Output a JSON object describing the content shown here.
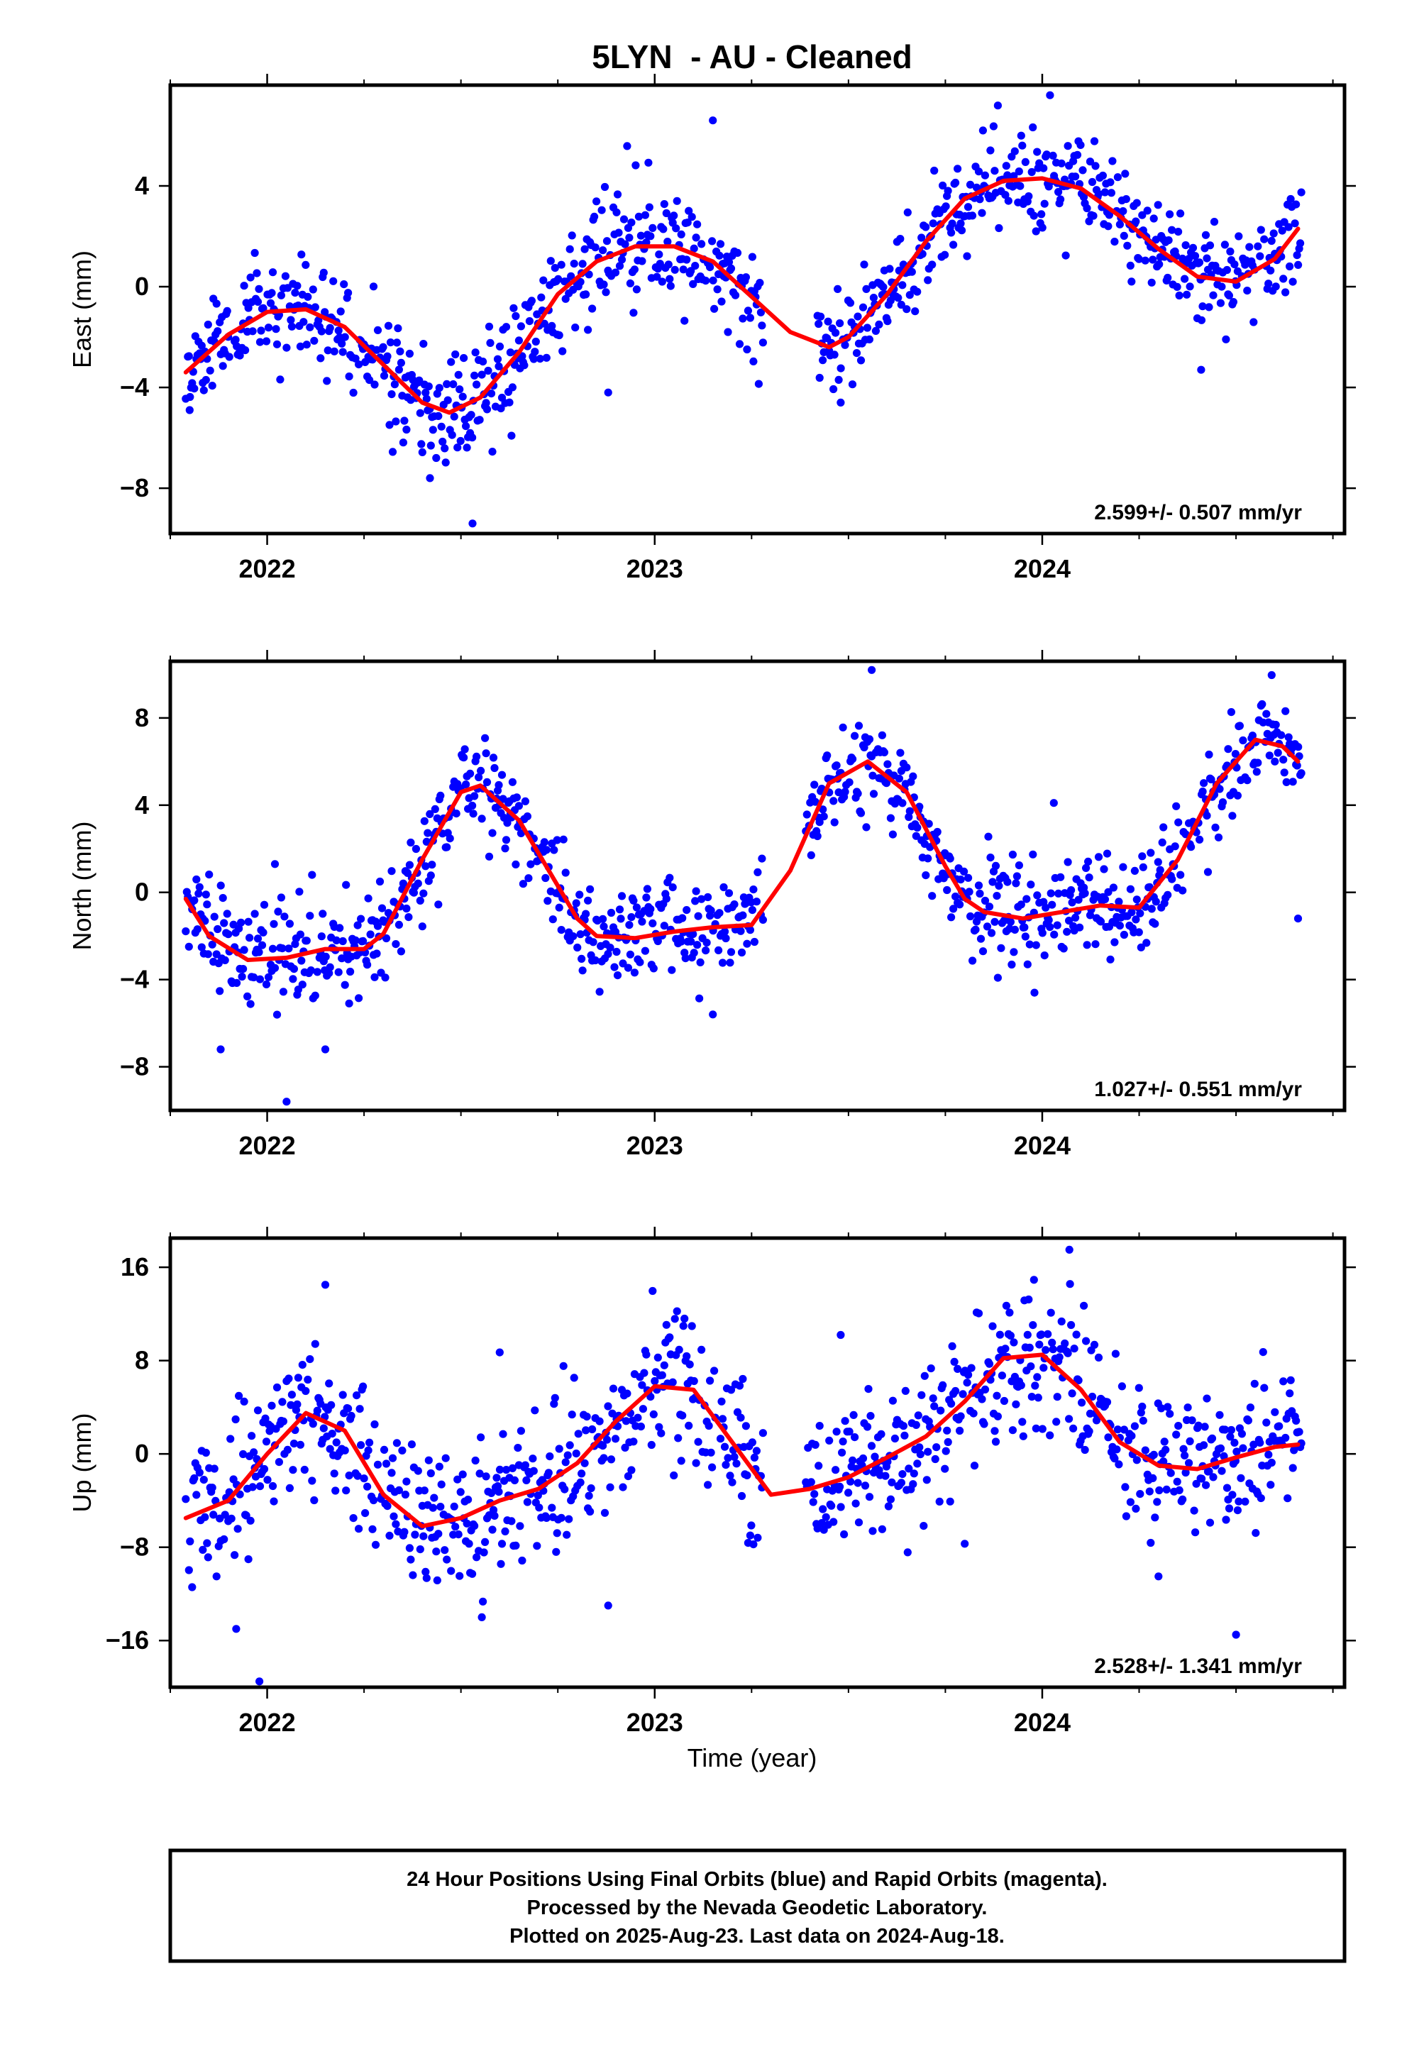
{
  "title": "5LYN  - AU - Cleaned",
  "xlabel": "Time (year)",
  "footer": {
    "lines": [
      "24 Hour Positions Using Final Orbits (blue) and Rapid Orbits (magenta).",
      "Processed by the Nevada Geodetic Laboratory.",
      "Plotted on 2025-Aug-23. Last data on 2024-Aug-18."
    ]
  },
  "colors": {
    "points": "#0000ff",
    "model": "#ff0000",
    "frame": "#000000"
  },
  "chart_data": [
    {
      "type": "scatter",
      "name": "east",
      "ylabel": "East (mm)",
      "rate_label": "2.599+/- 0.507 mm/yr",
      "xlim": [
        2021.75,
        2024.78
      ],
      "ylim": [
        -9.8,
        8.0
      ],
      "yticks": [
        -8,
        -4,
        0,
        4
      ],
      "xticks": [
        2022,
        2023,
        2024
      ],
      "xminor": [
        2021.75,
        2022.25,
        2022.5,
        2022.75,
        2023.25,
        2023.5,
        2023.75,
        2024.25,
        2024.5,
        2024.75
      ],
      "seed": 11,
      "model": {
        "x": [
          2021.79,
          2021.9,
          2022.0,
          2022.1,
          2022.2,
          2022.3,
          2022.4,
          2022.47,
          2022.55,
          2022.65,
          2022.75,
          2022.85,
          2022.95,
          2023.05,
          2023.15,
          2023.25,
          2023.35,
          2023.45,
          2023.5,
          2023.6,
          2023.7,
          2023.8,
          2023.9,
          2024.0,
          2024.1,
          2024.2,
          2024.3,
          2024.4,
          2024.5,
          2024.6,
          2024.66
        ],
        "y": [
          -3.4,
          -1.9,
          -1.0,
          -0.9,
          -1.6,
          -3.1,
          -4.6,
          -5.0,
          -4.4,
          -2.6,
          -0.3,
          1.0,
          1.6,
          1.6,
          1.0,
          -0.4,
          -1.8,
          -2.4,
          -2.0,
          -0.3,
          1.8,
          3.5,
          4.2,
          4.3,
          3.9,
          2.8,
          1.5,
          0.4,
          0.2,
          1.1,
          2.3
        ]
      },
      "segments": [
        {
          "start": 2021.79,
          "end": 2023.28,
          "noise": 1.1,
          "outliers": [
            [
              2022.53,
              -9.4
            ],
            [
              2022.42,
              -7.6
            ],
            [
              2021.8,
              -4.9
            ],
            [
              2022.88,
              -4.2
            ]
          ]
        },
        {
          "start": 2023.42,
          "end": 2024.67,
          "noise": 1.0,
          "outliers": [
            [
              2024.02,
              7.6
            ],
            [
              2023.15,
              6.6
            ],
            [
              2024.41,
              -3.3
            ],
            [
              2023.48,
              -4.6
            ]
          ]
        }
      ]
    },
    {
      "type": "scatter",
      "name": "north",
      "ylabel": "North (mm)",
      "rate_label": "1.027+/- 0.551 mm/yr",
      "xlim": [
        2021.75,
        2024.78
      ],
      "ylim": [
        -10.0,
        10.6
      ],
      "yticks": [
        -8,
        -4,
        0,
        4,
        8
      ],
      "xticks": [
        2022,
        2023,
        2024
      ],
      "xminor": [
        2021.75,
        2022.25,
        2022.5,
        2022.75,
        2023.25,
        2023.5,
        2023.75,
        2024.25,
        2024.5,
        2024.75
      ],
      "seed": 23,
      "model": {
        "x": [
          2021.79,
          2021.85,
          2021.95,
          2022.05,
          2022.15,
          2022.25,
          2022.3,
          2022.4,
          2022.5,
          2022.55,
          2022.65,
          2022.75,
          2022.8,
          2022.85,
          2022.95,
          2023.05,
          2023.15,
          2023.25,
          2023.35,
          2023.45,
          2023.55,
          2023.65,
          2023.75,
          2023.8,
          2023.85,
          2023.95,
          2024.05,
          2024.15,
          2024.25,
          2024.35,
          2024.45,
          2024.55,
          2024.62,
          2024.66
        ],
        "y": [
          -0.3,
          -2.0,
          -3.1,
          -3.0,
          -2.6,
          -2.6,
          -1.9,
          1.5,
          4.6,
          4.9,
          3.3,
          0.3,
          -1.2,
          -2.0,
          -2.1,
          -1.8,
          -1.6,
          -1.5,
          1.0,
          5.0,
          6.0,
          4.6,
          1.2,
          -0.3,
          -0.9,
          -1.2,
          -0.9,
          -0.6,
          -0.7,
          1.5,
          5.0,
          7.0,
          6.7,
          6.0
        ]
      },
      "segments": [
        {
          "start": 2021.79,
          "end": 2023.28,
          "noise": 1.15,
          "outliers": [
            [
              2022.05,
              -9.6
            ],
            [
              2021.88,
              -7.2
            ],
            [
              2022.15,
              -7.2
            ],
            [
              2022.02,
              1.3
            ],
            [
              2023.15,
              -5.6
            ]
          ]
        },
        {
          "start": 2023.39,
          "end": 2024.67,
          "noise": 1.1,
          "outliers": [
            [
              2023.56,
              10.2
            ],
            [
              2024.03,
              4.1
            ],
            [
              2023.98,
              -4.6
            ],
            [
              2024.66,
              -1.2
            ]
          ]
        }
      ]
    },
    {
      "type": "scatter",
      "name": "up",
      "ylabel": "Up (mm)",
      "rate_label": "2.528+/- 1.341 mm/yr",
      "xlim": [
        2021.75,
        2024.78
      ],
      "ylim": [
        -20.0,
        18.5
      ],
      "yticks": [
        -16,
        -8,
        0,
        8,
        16
      ],
      "xticks": [
        2022,
        2023,
        2024
      ],
      "xminor": [
        2021.75,
        2022.25,
        2022.5,
        2022.75,
        2023.25,
        2023.5,
        2023.75,
        2024.25,
        2024.5,
        2024.75
      ],
      "seed": 37,
      "model": {
        "x": [
          2021.79,
          2021.9,
          2022.0,
          2022.1,
          2022.2,
          2022.3,
          2022.4,
          2022.5,
          2022.6,
          2022.7,
          2022.8,
          2022.9,
          2023.0,
          2023.1,
          2023.2,
          2023.3,
          2023.4,
          2023.5,
          2023.6,
          2023.7,
          2023.8,
          2023.9,
          2024.0,
          2024.1,
          2024.2,
          2024.3,
          2024.4,
          2024.5,
          2024.6,
          2024.66
        ],
        "y": [
          -5.5,
          -4.0,
          0.0,
          3.5,
          2.0,
          -3.5,
          -6.2,
          -5.5,
          -4.0,
          -3.0,
          -0.8,
          2.8,
          5.8,
          5.5,
          1.0,
          -3.5,
          -3.0,
          -2.0,
          -0.3,
          1.5,
          4.5,
          8.2,
          8.5,
          5.5,
          1.0,
          -1.0,
          -1.3,
          -0.3,
          0.6,
          0.8
        ]
      },
      "segments": [
        {
          "start": 2021.79,
          "end": 2023.28,
          "noise": 3.0,
          "outliers": [
            [
              2021.98,
              -19.5
            ],
            [
              2022.15,
              14.5
            ],
            [
              2021.92,
              -15.0
            ],
            [
              2022.88,
              -13.0
            ],
            [
              2022.6,
              8.7
            ]
          ]
        },
        {
          "start": 2023.39,
          "end": 2024.67,
          "noise": 3.1,
          "outliers": [
            [
              2024.07,
              17.5
            ],
            [
              2024.5,
              -15.5
            ],
            [
              2024.3,
              -10.5
            ],
            [
              2023.8,
              -7.7
            ],
            [
              2023.48,
              10.2
            ]
          ]
        }
      ]
    }
  ]
}
